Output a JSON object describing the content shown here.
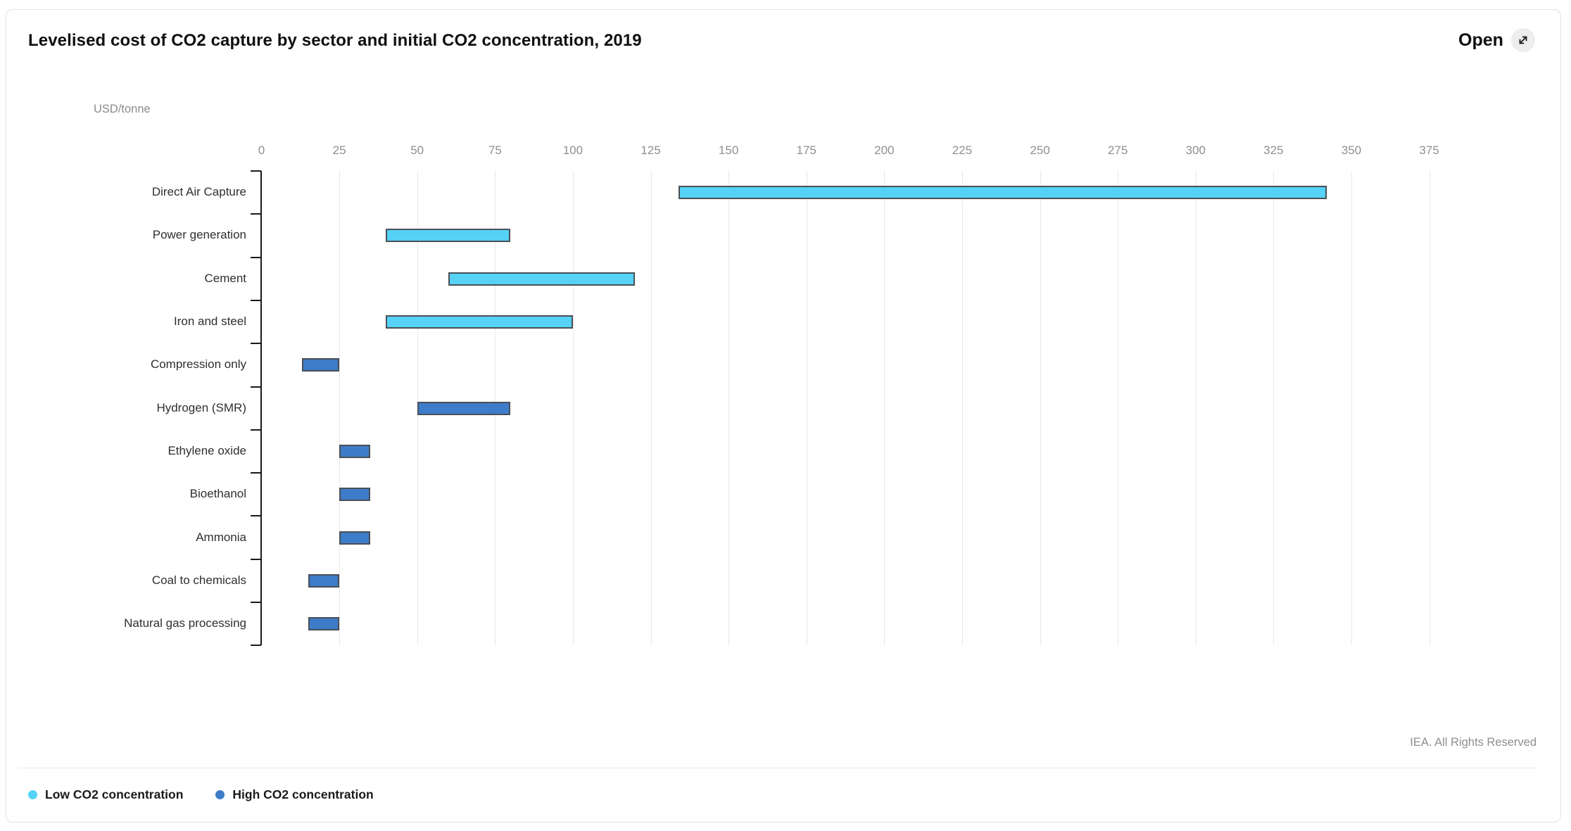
{
  "header": {
    "title": "Levelised cost of CO2 capture by sector and initial CO2 concentration, 2019",
    "open_label": "Open",
    "open_icon": "expand-diagonal-arrow-icon"
  },
  "footer": {
    "copyright": "IEA. All Rights Reserved"
  },
  "colors": {
    "low_concentration": "#55d2f6",
    "high_concentration": "#3d7cc9",
    "bar_border": "#4a4f55",
    "axis_line": "#1a1a1a",
    "gridline": "#e8e8e8",
    "tick_text": "#8f8f8f",
    "category_text": "#2f2f2f"
  },
  "chart_data": {
    "type": "bar",
    "orientation": "horizontal-range",
    "title": "Levelised cost of CO2 capture by sector and initial CO2 concentration, 2019",
    "xlabel": "USD/tonne",
    "xlim": [
      0,
      375
    ],
    "x_ticks": [
      0,
      25,
      50,
      75,
      100,
      125,
      150,
      175,
      200,
      225,
      250,
      275,
      300,
      325,
      350,
      375
    ],
    "grid": "vertical",
    "legend_position": "bottom-left",
    "categories": [
      "Direct Air Capture",
      "Power generation",
      "Cement",
      "Iron and steel",
      "Compression only",
      "Hydrogen (SMR)",
      "Ethylene oxide",
      "Bioethanol",
      "Ammonia",
      "Coal to chemicals",
      "Natural gas processing"
    ],
    "series": [
      {
        "name": "Low CO2 concentration",
        "color": "#55d2f6",
        "ranges": [
          [
            134,
            342
          ],
          [
            40,
            80
          ],
          [
            60,
            120
          ],
          [
            40,
            100
          ],
          null,
          null,
          null,
          null,
          null,
          null,
          null
        ]
      },
      {
        "name": "High CO2 concentration",
        "color": "#3d7cc9",
        "ranges": [
          null,
          null,
          null,
          null,
          [
            13,
            25
          ],
          [
            50,
            80
          ],
          [
            25,
            35
          ],
          [
            25,
            35
          ],
          [
            25,
            35
          ],
          [
            15,
            25
          ],
          [
            15,
            25
          ]
        ]
      }
    ]
  }
}
